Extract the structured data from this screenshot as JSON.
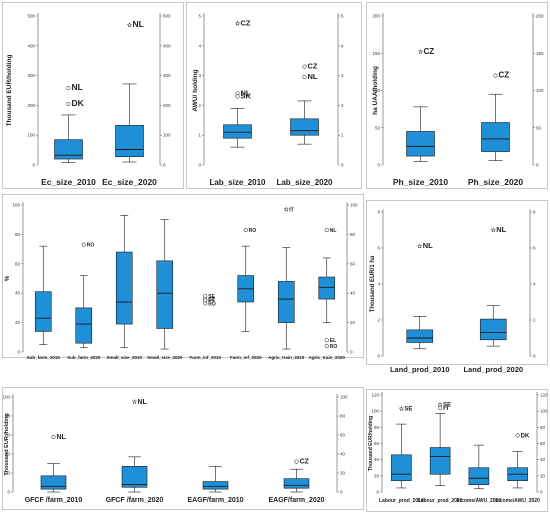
{
  "chart_data": [
    {
      "type": "box",
      "ylabel": "Thousand EUR/holding",
      "ylim": [
        0,
        500
      ],
      "yticks": [
        0,
        100,
        200,
        300,
        400,
        500
      ],
      "right_ylim": [
        0,
        500
      ],
      "right_yticks": [
        0,
        100,
        200,
        300,
        400,
        500
      ],
      "categories": [
        "Ec_size_2010",
        "Ec_size_2020"
      ],
      "boxes": [
        {
          "category": "Ec_size_2010",
          "whisker_low": 8,
          "q1": 20,
          "median": 33,
          "q3": 85,
          "whisker_high": 168
        },
        {
          "category": "Ec_size_2020",
          "whisker_low": 10,
          "q1": 28,
          "median": 52,
          "q3": 133,
          "whisker_high": 272
        }
      ],
      "outliers": [
        {
          "category": "Ec_size_2010",
          "value": 258,
          "label": "NL",
          "marker": "circle"
        },
        {
          "category": "Ec_size_2010",
          "value": 205,
          "label": "DK",
          "marker": "circle"
        },
        {
          "category": "Ec_size_2020",
          "value": 470,
          "label": "NL",
          "marker": "star"
        }
      ]
    },
    {
      "type": "box",
      "ylabel": "AWU/ holding",
      "ylim": [
        0,
        5
      ],
      "yticks": [
        0,
        1,
        2,
        3,
        4,
        5
      ],
      "right_ylim": [
        0,
        5
      ],
      "right_yticks": [
        0,
        1,
        2,
        3,
        4,
        5
      ],
      "categories": [
        "Lab_size_2010",
        "Lab_size_2020"
      ],
      "boxes": [
        {
          "category": "Lab_size_2010",
          "whisker_low": 0.6,
          "q1": 0.9,
          "median": 1.1,
          "q3": 1.35,
          "whisker_high": 1.9
        },
        {
          "category": "Lab_size_2020",
          "whisker_low": 0.7,
          "q1": 1.0,
          "median": 1.15,
          "q3": 1.55,
          "whisker_high": 2.15
        }
      ],
      "outliers": [
        {
          "category": "Lab_size_2010",
          "value": 4.75,
          "label": "CZ",
          "marker": "star"
        },
        {
          "category": "Lab_size_2010",
          "value": 2.4,
          "label": "NL",
          "marker": "circle"
        },
        {
          "category": "Lab_size_2010",
          "value": 2.3,
          "label": "SK",
          "marker": "circle"
        },
        {
          "category": "Lab_size_2020",
          "value": 3.3,
          "label": "CZ",
          "marker": "circle"
        },
        {
          "category": "Lab_size_2020",
          "value": 2.95,
          "label": "NL",
          "marker": "circle"
        }
      ]
    },
    {
      "type": "box",
      "ylabel": "ha UAA/holding",
      "ylim": [
        0,
        200
      ],
      "yticks": [
        0,
        50,
        100,
        150,
        200
      ],
      "right_ylim": [
        0,
        200
      ],
      "right_yticks": [
        0,
        50,
        100,
        150,
        200
      ],
      "categories": [
        "Ph_size_2010",
        "Ph_size_2020"
      ],
      "boxes": [
        {
          "category": "Ph_size_2010",
          "whisker_low": 5,
          "q1": 12,
          "median": 25,
          "q3": 45,
          "whisker_high": 78
        },
        {
          "category": "Ph_size_2020",
          "whisker_low": 6,
          "q1": 18,
          "median": 35,
          "q3": 57,
          "whisker_high": 95
        }
      ],
      "outliers": [
        {
          "category": "Ph_size_2010",
          "value": 152,
          "label": "CZ",
          "marker": "star"
        },
        {
          "category": "Ph_size_2020",
          "value": 120,
          "label": "CZ",
          "marker": "circle"
        }
      ]
    },
    {
      "type": "box",
      "ylabel": "%",
      "ylim": [
        0,
        100
      ],
      "yticks": [
        0,
        20,
        40,
        60,
        80,
        100
      ],
      "right_ylim": [
        0,
        100
      ],
      "right_yticks": [
        0,
        20,
        40,
        60,
        80,
        100
      ],
      "categories": [
        "Sub_farm_2010",
        "Sub_farm_2020",
        "Small_size_2010",
        "Small_size_2020",
        "Farm_inf_2010",
        "Farm_inf_2020",
        "Agric_train_2010",
        "Agric_train_2020"
      ],
      "boxes": [
        {
          "category": "Sub_farm_2010",
          "whisker_low": 5,
          "q1": 14,
          "median": 23,
          "q3": 41,
          "whisker_high": 72
        },
        {
          "category": "Sub_farm_2020",
          "whisker_low": 3,
          "q1": 6,
          "median": 19,
          "q3": 30,
          "whisker_high": 52
        },
        {
          "category": "Small_size_2010",
          "whisker_low": 3,
          "q1": 19,
          "median": 34,
          "q3": 68,
          "whisker_high": 93
        },
        {
          "category": "Small_size_2020",
          "whisker_low": 2,
          "q1": 16,
          "median": 40,
          "q3": 62,
          "whisker_high": 90
        },
        {
          "category": "Farm_inf_2020",
          "whisker_low": 14,
          "q1": 34,
          "median": 43,
          "q3": 52,
          "whisker_high": 72
        },
        {
          "category": "Agric_train_2010",
          "whisker_low": 2,
          "q1": 20,
          "median": 36,
          "q3": 48,
          "whisker_high": 71
        },
        {
          "category": "Agric_train_2020",
          "whisker_low": 20,
          "q1": 36,
          "median": 44,
          "q3": 51,
          "whisker_high": 64
        }
      ],
      "outliers": [
        {
          "category": "Sub_farm_2020",
          "value": 73,
          "label": "RO",
          "marker": "circle"
        },
        {
          "category": "Farm_inf_2010",
          "value": 38,
          "label": "SE",
          "marker": "circle"
        },
        {
          "category": "Farm_inf_2010",
          "value": 36,
          "label": "CZ",
          "marker": "circle"
        },
        {
          "category": "Farm_inf_2010",
          "value": 35,
          "label": "PT",
          "marker": "circle"
        },
        {
          "category": "Farm_inf_2010",
          "value": 33,
          "label": "RO",
          "marker": "circle"
        },
        {
          "category": "Farm_inf_2020",
          "value": 83,
          "label": "RO",
          "marker": "circle"
        },
        {
          "category": "Agric_train_2010",
          "value": 97,
          "label": "IT",
          "marker": "star"
        },
        {
          "category": "Agric_train_2020",
          "value": 83,
          "label": "NL",
          "marker": "circle"
        },
        {
          "category": "Agric_train_2020",
          "value": 8,
          "label": "EL",
          "marker": "circle"
        },
        {
          "category": "Agric_train_2020",
          "value": 4,
          "label": "RO",
          "marker": "circle"
        }
      ]
    },
    {
      "type": "box",
      "ylabel": "Thousand EUR/1 ha",
      "ylim": [
        0,
        8
      ],
      "yticks": [
        0,
        2,
        4,
        6,
        8
      ],
      "right_ylim": [
        0,
        8
      ],
      "right_yticks": [
        0,
        2,
        4,
        6,
        8
      ],
      "categories": [
        "Land_prod_2010",
        "Land_prod_2020"
      ],
      "boxes": [
        {
          "category": "Land_prod_2010",
          "whisker_low": 0.4,
          "q1": 0.75,
          "median": 1.0,
          "q3": 1.45,
          "whisker_high": 2.2
        },
        {
          "category": "Land_prod_2020",
          "whisker_low": 0.55,
          "q1": 0.9,
          "median": 1.3,
          "q3": 2.05,
          "whisker_high": 2.8
        }
      ],
      "outliers": [
        {
          "category": "Land_prod_2010",
          "value": 6.1,
          "label": "NL",
          "marker": "star"
        },
        {
          "category": "Land_prod_2020",
          "value": 7.0,
          "label": "NL",
          "marker": "star"
        }
      ]
    },
    {
      "type": "box",
      "ylabel": "Thousand EUR /holding",
      "ylim": [
        0,
        100
      ],
      "yticks": [
        0,
        20,
        40,
        60,
        80,
        100
      ],
      "right_ylim": [
        0,
        100
      ],
      "right_yticks": [
        0,
        20,
        40,
        60,
        80,
        100
      ],
      "categories": [
        "GFCF /farm_2010",
        "GFCF /farm_2020",
        "EAGF/farm_2010",
        "EAGF/farm_2020"
      ],
      "boxes": [
        {
          "category": "GFCF /farm_2010",
          "whisker_low": 0,
          "q1": 3,
          "median": 6,
          "q3": 17,
          "whisker_high": 30
        },
        {
          "category": "GFCF /farm_2020",
          "whisker_low": 0,
          "q1": 5,
          "median": 8,
          "q3": 27,
          "whisker_high": 37
        },
        {
          "category": "EAGF/farm_2010",
          "whisker_low": 0,
          "q1": 3,
          "median": 6,
          "q3": 11,
          "whisker_high": 27
        },
        {
          "category": "EAGF/farm_2020",
          "whisker_low": 0,
          "q1": 4,
          "median": 7,
          "q3": 14,
          "whisker_high": 24
        }
      ],
      "outliers": [
        {
          "category": "GFCF /farm_2010",
          "value": 58,
          "label": "NL",
          "marker": "circle"
        },
        {
          "category": "GFCF /farm_2020",
          "value": 95,
          "label": "NL",
          "marker": "star"
        },
        {
          "category": "EAGF/farm_2020",
          "value": 32,
          "label": "CZ",
          "marker": "circle"
        }
      ]
    },
    {
      "type": "box",
      "ylabel": "Thousand EUR/holding",
      "ylim": [
        0,
        120
      ],
      "yticks": [
        0,
        20,
        40,
        60,
        80,
        100,
        120
      ],
      "right_ylim": [
        0,
        120
      ],
      "right_yticks": [
        0,
        20,
        40,
        60,
        80,
        100,
        120
      ],
      "categories": [
        "Labour_prod_2010",
        "Labour_prod_2020",
        "Income/AWU_2010",
        "Income/AWU_2020"
      ],
      "boxes": [
        {
          "category": "Labour_prod_2010",
          "whisker_low": 5,
          "q1": 14,
          "median": 22,
          "q3": 46,
          "whisker_high": 84
        },
        {
          "category": "Labour_prod_2020",
          "whisker_low": 8,
          "q1": 22,
          "median": 44,
          "q3": 55,
          "whisker_high": 97
        },
        {
          "category": "Income/AWU_2010",
          "whisker_low": 4,
          "q1": 9,
          "median": 17,
          "q3": 30,
          "whisker_high": 58
        },
        {
          "category": "Income/AWU_2020",
          "whisker_low": 5,
          "q1": 14,
          "median": 22,
          "q3": 30,
          "whisker_high": 50
        }
      ],
      "outliers": [
        {
          "category": "Labour_prod_2010",
          "value": 103,
          "label": "SE",
          "marker": "star"
        },
        {
          "category": "Labour_prod_2020",
          "value": 108,
          "label": "SE",
          "marker": "star"
        },
        {
          "category": "Labour_prod_2020",
          "value": 104,
          "label": "FI",
          "marker": "circle"
        },
        {
          "category": "Income/AWU_2020",
          "value": 70,
          "label": "DK",
          "marker": "circle"
        }
      ]
    }
  ],
  "colors": {
    "box_fill": "#1f8fd8",
    "box_stroke": "#1a1a1a",
    "axis": "#555555",
    "text": "#222222"
  }
}
